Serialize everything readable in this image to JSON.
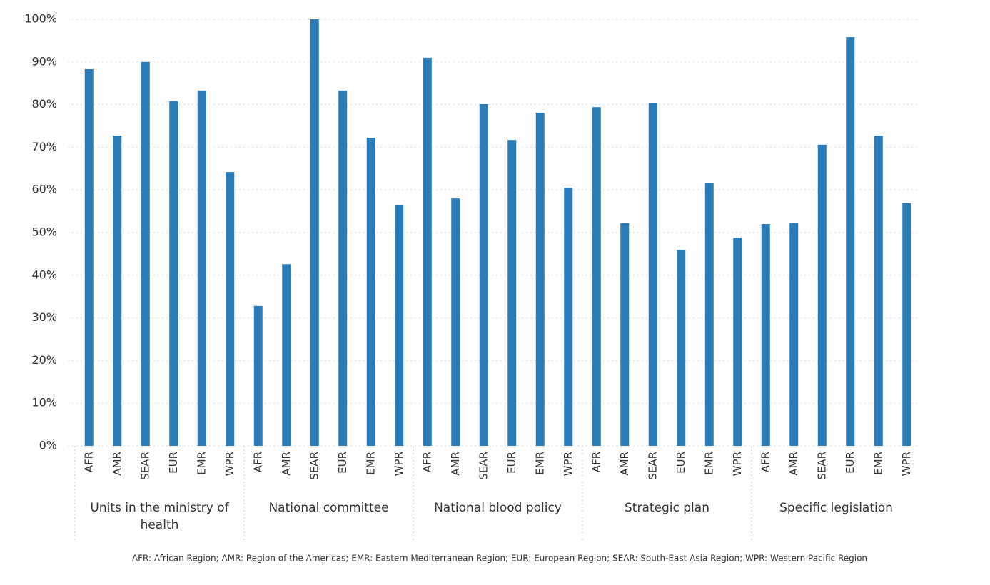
{
  "chart_data": {
    "type": "bar",
    "categories": [
      "AFR",
      "AMR",
      "SEAR",
      "EUR",
      "EMR",
      "WPR",
      "AFR",
      "AMR",
      "SEAR",
      "EUR",
      "EMR",
      "WPR",
      "AFR",
      "AMR",
      "SEAR",
      "EUR",
      "EMR",
      "WPR",
      "AFR",
      "AMR",
      "SEAR",
      "EUR",
      "EMR",
      "WPR",
      "AFR",
      "AMR",
      "SEAR",
      "EUR",
      "EMR",
      "WPR"
    ],
    "groups": [
      "Units in the ministry of health",
      "National committee",
      "National blood policy",
      "Strategic plan",
      "Specific legislation"
    ],
    "values": [
      88.3,
      72.7,
      90,
      80.8,
      83.3,
      64.2,
      32.8,
      42.6,
      100,
      83.3,
      72.2,
      56.4,
      91,
      58,
      80.1,
      71.7,
      78.1,
      60.5,
      79.4,
      52.2,
      80.4,
      46,
      61.7,
      48.8,
      52,
      52.3,
      70.6,
      95.8,
      72.7,
      56.9
    ],
    "color": "#2b7bb9",
    "ylim": [
      0,
      100
    ],
    "yticks": [
      {
        "value": 0,
        "label": "0%"
      },
      {
        "value": 10,
        "label": "10%"
      },
      {
        "value": 20,
        "label": "20%"
      },
      {
        "value": 30,
        "label": "30%"
      },
      {
        "value": 40,
        "label": "40%"
      },
      {
        "value": 50,
        "label": "50%"
      },
      {
        "value": 60,
        "label": "60%"
      },
      {
        "value": 70,
        "label": "70%"
      },
      {
        "value": 80,
        "label": "80%"
      },
      {
        "value": 90,
        "label": "90%"
      },
      {
        "value": 100,
        "label": "100%"
      }
    ],
    "grid": true,
    "footnote": "AFR: African Region; AMR: Region of the Americas; EMR: Eastern Mediterranean Region; EUR: European Region; SEAR: South-East Asia Region; WPR: Western Pacific Region"
  }
}
